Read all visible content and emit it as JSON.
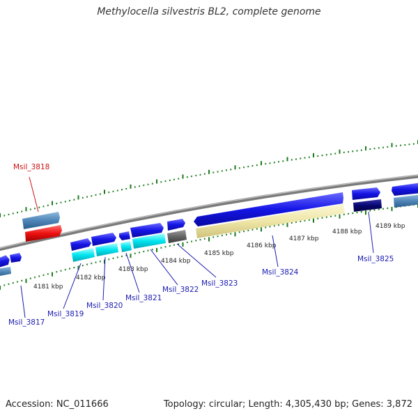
{
  "title": "Methylocella silvestris BL2, complete genome",
  "accession": "Accession: NC_011666",
  "summary": "Topology: circular; Length: 4,305,430 bp; Genes: 3,872",
  "colors": {
    "backbone": "#8a8a8a",
    "blue": "#1515e6",
    "steelblue": "#4f86b8",
    "red": "#ee1111",
    "cyan": "#00e5f0",
    "gray": "#666666",
    "cream": "#efe6a8",
    "navy": "#060670",
    "tick": "#1a7a1a",
    "label_blue": "#1a1ab0",
    "label_red": "#cc1111"
  },
  "scale_labels": [
    "4181 kbp",
    "4182 kbp",
    "4183 kbp",
    "4184 kbp",
    "4185 kbp",
    "4186 kbp",
    "4187 kbp",
    "4188 kbp",
    "4189 kbp"
  ],
  "gene_labels": [
    "Msil_3817",
    "Msil_3818",
    "Msil_3819",
    "Msil_3820",
    "Msil_3821",
    "Msil_3822",
    "Msil_3823",
    "Msil_3824",
    "Msil_3825"
  ]
}
